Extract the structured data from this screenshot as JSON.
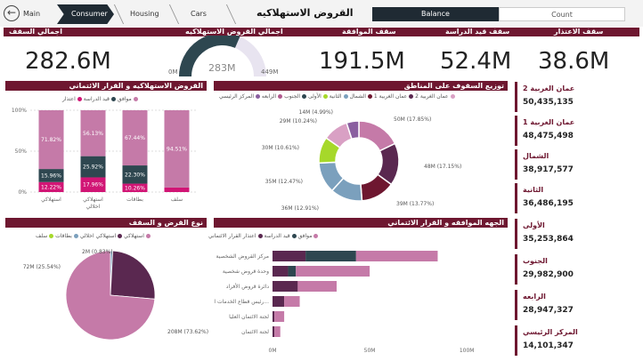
{
  "nav": {
    "back_label": "Main",
    "tabs": [
      {
        "label": "Consumer"
      },
      {
        "label": "Housing"
      },
      {
        "label": "Cars"
      }
    ],
    "page_title": "القروض الاستهلاكيه",
    "toggle_balance": "Balance",
    "toggle_count": "Count"
  },
  "kpis": {
    "total_ceiling": {
      "label": "اجمالي السقف",
      "value": "282.6M"
    },
    "total_loans": {
      "label": "اجمالي القروض الاستهلاكيه",
      "value": "283M",
      "min": "0M",
      "max": "449M"
    },
    "approved_ceiling": {
      "label": "سقف الموافقة",
      "value": "191.5M"
    },
    "under_study": {
      "label": "سقف قيد الدراسة",
      "value": "52.4M"
    },
    "rejection_ceiling": {
      "label": "سقف الاعتذار",
      "value": "38.6M"
    }
  },
  "panels": {
    "stacked_title": "القروض الاستهلاكيه و القرار الائتماني",
    "donut_title": "توزيع السقوف على المناطق",
    "pie_title": "نوع القرض و السقف",
    "hbar_title": "الجهه الموافقه و القرار الائتماني"
  },
  "regions": [
    {
      "name": "عمان الغربية 2",
      "value": "50,435,135"
    },
    {
      "name": "عمان الغربية 1",
      "value": "48,475,498"
    },
    {
      "name": "الشمال",
      "value": "38,917,577"
    },
    {
      "name": "الثانية",
      "value": "36,486,195"
    },
    {
      "name": "الأولى",
      "value": "35,253,864"
    },
    {
      "name": "الجنوب",
      "value": "29,982,900"
    },
    {
      "name": "الرابعه",
      "value": "28,947,327"
    },
    {
      "name": "المركز الرئيسي",
      "value": "14,101,347"
    }
  ],
  "colors": {
    "maroon": "#6e1730",
    "approved": "#c57aa8",
    "study": "#2e4750",
    "reject": "#d11575",
    "pink_light": "#d9a0c4",
    "dark_purple": "#5a2850",
    "lime": "#a6d82a",
    "steelblue": "#7ba0bd"
  },
  "chart_data": [
    {
      "type": "bar",
      "stacked": true,
      "title": "القروض الاستهلاكيه و القرار الائتماني",
      "legend": [
        "موافق",
        "قيد الدراسة",
        "اعتذار"
      ],
      "legend_position": "top",
      "categories": [
        "استهلاكي",
        "استهلاكي اخلالي",
        "بطاقات",
        "سلف"
      ],
      "series": [
        {
          "name": "موافق",
          "values": [
            71.82,
            56.13,
            67.44,
            94.51
          ]
        },
        {
          "name": "قيد الدراسة",
          "values": [
            15.96,
            25.92,
            22.3,
            0
          ]
        },
        {
          "name": "اعتذار",
          "values": [
            12.22,
            17.96,
            10.26,
            5.49
          ]
        }
      ],
      "data_labels": [
        [
          "71.82%",
          "15.96%",
          "12.22%"
        ],
        [
          "56.13%",
          "25.92%",
          "17.96%"
        ],
        [
          "67.44%",
          "22.30%",
          "10.26%"
        ],
        [
          "94.51%",
          "",
          ""
        ]
      ],
      "yticks": [
        "0%",
        "50%",
        "100%"
      ],
      "ylim": [
        0,
        100
      ]
    },
    {
      "type": "pie",
      "donut": true,
      "title": "توزيع السقوف على المناطق",
      "legend": [
        "عمان الغربية 2",
        "عمان الغربية 1",
        "الشمال",
        "الثانية",
        "الأولى",
        "الجنوب",
        "الرابعه",
        "المركز الرئيسي"
      ],
      "legend_position": "top",
      "slices": [
        {
          "label": "50M (17.85%)",
          "value": 17.85
        },
        {
          "label": "48M (17.15%)",
          "value": 17.15
        },
        {
          "label": "39M (13.77%)",
          "value": 13.77
        },
        {
          "label": "36M (12.91%)",
          "value": 12.91
        },
        {
          "label": "35M (12.47%)",
          "value": 12.47
        },
        {
          "label": "30M (10.61%)",
          "value": 10.61
        },
        {
          "label": "29M (10.24%)",
          "value": 10.24
        },
        {
          "label": "14M (4.99%)",
          "value": 4.99
        }
      ]
    },
    {
      "type": "pie",
      "title": "نوع القرض و السقف",
      "legend": [
        "استهلاكي",
        "استهلاكي اخلالي",
        "بطاقات",
        "سلف"
      ],
      "legend_position": "top",
      "slices": [
        {
          "label": "208M (73.62%)",
          "value": 73.62
        },
        {
          "label": "72M (25.54%)",
          "value": 25.54
        },
        {
          "label": "2M (0.83%)",
          "value": 0.83
        }
      ]
    },
    {
      "type": "bar",
      "orientation": "horizontal",
      "stacked": true,
      "title": "الجهه الموافقه و القرار الائتماني",
      "legend": [
        "موافق",
        "قيد الدراسة",
        "اعتذار",
        "القرار الائتماني"
      ],
      "legend_position": "top",
      "categories": [
        "مركز القروض الشخصية",
        "وحدة قروض شخصية",
        "دائرة قروض الأفراد",
        "رئيس قطاع الخدمات الم...",
        "لجنة الائتمان العليا",
        "لجنة الائتمان"
      ],
      "series": [
        {
          "name": "موافق",
          "values": [
            42,
            38,
            20,
            8,
            5,
            3
          ]
        },
        {
          "name": "قيد الدراسة",
          "values": [
            26,
            4,
            0,
            0,
            0,
            0
          ]
        },
        {
          "name": "اعتذار",
          "values": [
            17,
            8,
            13,
            6,
            1,
            1
          ]
        }
      ],
      "xticks": [
        "0M",
        "50M",
        "100M"
      ],
      "xlim": [
        0,
        110
      ]
    }
  ]
}
